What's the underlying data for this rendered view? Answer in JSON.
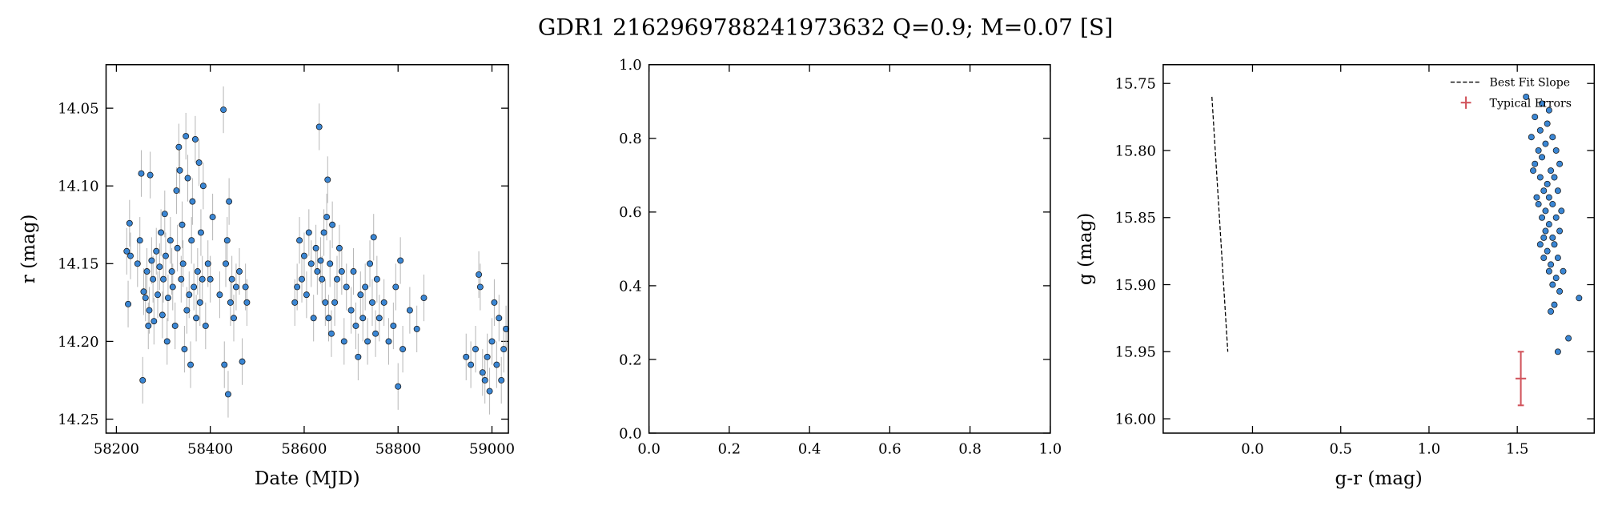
{
  "title": "GDR1 2162969788241973632  Q=0.9; M=0.07 [S]",
  "chart_data": [
    {
      "type": "scatter",
      "xlabel": "Date (MJD)",
      "ylabel": "r (mag)",
      "xlim": [
        58178,
        59035
      ],
      "ylim": [
        14.259,
        14.022
      ],
      "xticks": [
        58200,
        58400,
        58600,
        58800,
        59000
      ],
      "yticks": [
        14.05,
        {
          "value": 14.1,
          "label": "14.10"
        },
        14.15,
        {
          "value": 14.2,
          "label": "14.20"
        },
        14.25
      ],
      "series": [
        {
          "mode": "markers",
          "color": "#3a86d4",
          "errcolor": "#b8b8b8",
          "yerr": 0.015,
          "x": [
            58222,
            58225,
            58228,
            58230,
            58245,
            58250,
            58253,
            58256,
            58258,
            58262,
            58265,
            58268,
            58270,
            58272,
            58275,
            58278,
            58280,
            58285,
            58288,
            58292,
            58295,
            58298,
            58300,
            58303,
            58305,
            58308,
            58310,
            58315,
            58318,
            58320,
            58325,
            58328,
            58330,
            58333,
            58335,
            58338,
            58340,
            58342,
            58345,
            58348,
            58350,
            58352,
            58355,
            58358,
            58360,
            58362,
            58365,
            58368,
            58370,
            58373,
            58376,
            58378,
            58380,
            58383,
            58385,
            58390,
            58395,
            58400,
            58405,
            58420,
            58428,
            58430,
            58433,
            58436,
            58438,
            58440,
            58443,
            58446,
            58450,
            58455,
            58462,
            58468,
            58475,
            58478,
            58580,
            58585,
            58590,
            58595,
            58600,
            58605,
            58610,
            58615,
            58620,
            58625,
            58628,
            58632,
            58635,
            58638,
            58642,
            58645,
            58648,
            58650,
            58652,
            58655,
            58658,
            58660,
            58665,
            58670,
            58675,
            58680,
            58685,
            58690,
            58700,
            58705,
            58710,
            58715,
            58720,
            58725,
            58730,
            58735,
            58740,
            58745,
            58748,
            58752,
            58755,
            58760,
            58770,
            58780,
            58790,
            58795,
            58800,
            58805,
            58810,
            58825,
            58840,
            58855,
            58945,
            58955,
            58965,
            58972,
            58975,
            58980,
            58985,
            58990,
            58995,
            59000,
            59005,
            59010,
            59015,
            59020,
            59025,
            59030
          ],
          "values": [
            14.142,
            14.176,
            14.124,
            14.145,
            14.15,
            14.135,
            14.092,
            14.225,
            14.168,
            14.172,
            14.155,
            14.19,
            14.18,
            14.093,
            14.148,
            14.16,
            14.187,
            14.142,
            14.17,
            14.152,
            14.13,
            14.183,
            14.16,
            14.118,
            14.145,
            14.2,
            14.172,
            14.135,
            14.155,
            14.165,
            14.19,
            14.103,
            14.14,
            14.075,
            14.09,
            14.16,
            14.125,
            14.15,
            14.205,
            14.068,
            14.18,
            14.095,
            14.17,
            14.215,
            14.135,
            14.11,
            14.165,
            14.07,
            14.185,
            14.155,
            14.085,
            14.175,
            14.13,
            14.16,
            14.1,
            14.19,
            14.15,
            14.16,
            14.12,
            14.17,
            14.051,
            14.215,
            14.15,
            14.135,
            14.234,
            14.11,
            14.175,
            14.16,
            14.185,
            14.165,
            14.155,
            14.213,
            14.165,
            14.175,
            14.175,
            14.165,
            14.135,
            14.16,
            14.145,
            14.17,
            14.13,
            14.15,
            14.185,
            14.14,
            14.155,
            14.062,
            14.148,
            14.16,
            14.13,
            14.175,
            14.12,
            14.096,
            14.185,
            14.15,
            14.195,
            14.125,
            14.175,
            14.16,
            14.14,
            14.155,
            14.2,
            14.165,
            14.18,
            14.155,
            14.19,
            14.21,
            14.17,
            14.185,
            14.165,
            14.2,
            14.15,
            14.175,
            14.133,
            14.195,
            14.16,
            14.185,
            14.175,
            14.2,
            14.19,
            14.165,
            14.229,
            14.148,
            14.205,
            14.18,
            14.192,
            14.172,
            14.21,
            14.215,
            14.205,
            14.157,
            14.165,
            14.22,
            14.225,
            14.21,
            14.232,
            14.2,
            14.175,
            14.215,
            14.185,
            14.225,
            14.205,
            14.192
          ]
        }
      ]
    },
    {
      "type": "scatter",
      "xlim": [
        0,
        1
      ],
      "ylim": [
        0,
        1
      ],
      "xticks": [
        {
          "value": 0,
          "label": "0.0"
        },
        0.2,
        0.4,
        0.6,
        0.8,
        {
          "value": 1,
          "label": "1.0"
        }
      ],
      "yticks": [
        {
          "value": 0,
          "label": "0.0"
        },
        0.2,
        0.4,
        0.6,
        0.8,
        {
          "value": 1,
          "label": "1.0"
        }
      ],
      "series": []
    },
    {
      "type": "scatter",
      "xlabel": "g-r (mag)",
      "ylabel": "g (mag)",
      "legend": "upper right",
      "xlim": [
        -0.506,
        1.936
      ],
      "ylim": [
        16.0107,
        15.736
      ],
      "xticks": [
        {
          "value": 0,
          "label": "0.0"
        },
        0.5,
        {
          "value": 1,
          "label": "1.0"
        },
        1.5
      ],
      "yticks": [
        15.75,
        {
          "value": 15.8,
          "label": "15.80"
        },
        15.85,
        {
          "value": 15.9,
          "label": "15.90"
        },
        15.95,
        {
          "value": 16,
          "label": "16.00"
        }
      ],
      "series": [
        {
          "name": "Best Fit Slope",
          "mode": "line",
          "color": "#000000",
          "x": [
            -0.23,
            -0.14
          ],
          "values": [
            15.76,
            15.95
          ]
        },
        {
          "name": "Typical Errors",
          "mode": "errorbar",
          "color": "#d1545c",
          "x": [
            1.52
          ],
          "values": [
            15.97
          ],
          "xerr": 0.03,
          "yerr": 0.02
        },
        {
          "mode": "markers",
          "color": "#3a86d4",
          "x": [
            1.55,
            1.6,
            1.58,
            1.63,
            1.67,
            1.7,
            1.62,
            1.66,
            1.72,
            1.6,
            1.64,
            1.69,
            1.74,
            1.63,
            1.67,
            1.71,
            1.65,
            1.68,
            1.73,
            1.62,
            1.66,
            1.7,
            1.75,
            1.64,
            1.68,
            1.72,
            1.66,
            1.7,
            1.74,
            1.63,
            1.67,
            1.71,
            1.65,
            1.69,
            1.73,
            1.68,
            1.72,
            1.76,
            1.85,
            1.7,
            1.74,
            1.71,
            1.79,
            1.73,
            1.69,
            1.65,
            1.61,
            1.59,
            1.68,
            1.64
          ],
          "values": [
            15.76,
            15.775,
            15.79,
            15.785,
            15.78,
            15.79,
            15.8,
            15.795,
            15.8,
            15.81,
            15.805,
            15.815,
            15.81,
            15.82,
            15.825,
            15.82,
            15.83,
            15.835,
            15.83,
            15.84,
            15.845,
            15.84,
            15.845,
            15.85,
            15.855,
            15.85,
            15.86,
            15.865,
            15.86,
            15.87,
            15.875,
            15.87,
            15.88,
            15.885,
            15.88,
            15.89,
            15.895,
            15.89,
            15.91,
            15.9,
            15.905,
            15.915,
            15.94,
            15.95,
            15.92,
            15.865,
            15.835,
            15.815,
            15.77,
            15.765
          ]
        }
      ]
    }
  ]
}
